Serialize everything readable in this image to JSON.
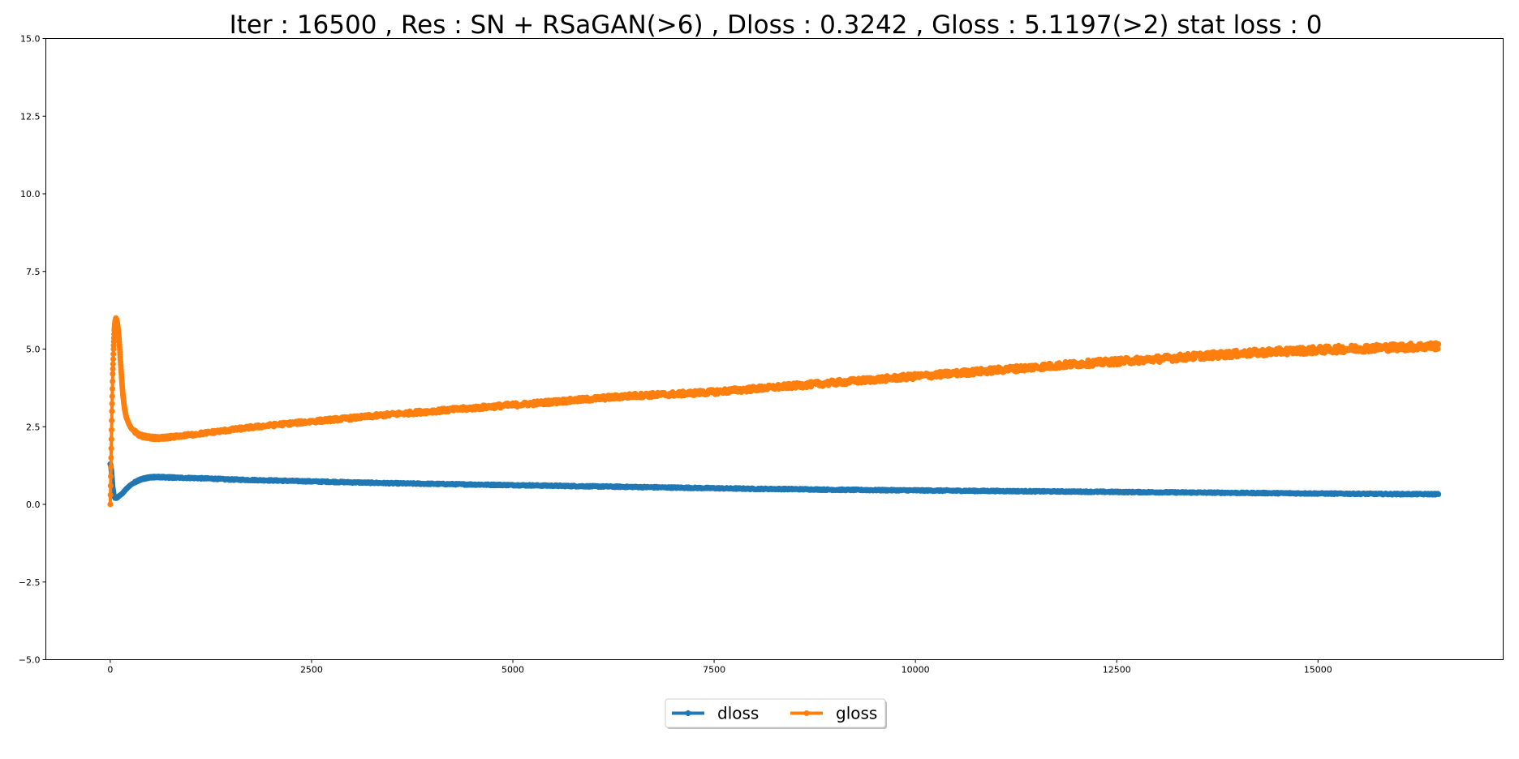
{
  "chart_data": {
    "type": "line",
    "title": "Iter : 16500 , Res : SN + RSaGAN(>6) , Dloss : 0.3242 , Gloss : 5.1197(>2) stat loss : 0",
    "xlabel": "",
    "ylabel": "",
    "xlim": [
      -800,
      17300
    ],
    "ylim": [
      -5.0,
      15.0
    ],
    "xticks": [
      0,
      2500,
      5000,
      7500,
      10000,
      12500,
      15000
    ],
    "xtick_labels": [
      "0",
      "2500",
      "5000",
      "7500",
      "10000",
      "12500",
      "15000"
    ],
    "yticks": [
      -5.0,
      -2.5,
      0.0,
      2.5,
      5.0,
      7.5,
      10.0,
      12.5,
      15.0
    ],
    "ytick_labels": [
      "−5.0",
      "−2.5",
      "0.0",
      "2.5",
      "5.0",
      "7.5",
      "10.0",
      "12.5",
      "15.0"
    ],
    "grid": false,
    "legend_position": "bottom-center",
    "series": [
      {
        "name": "dloss",
        "color": "#1f77b4",
        "x": [
          0,
          10,
          20,
          30,
          45,
          60,
          80,
          100,
          150,
          200,
          250,
          300,
          350,
          400,
          450,
          500,
          550,
          600,
          700,
          800,
          1000,
          1250,
          1500,
          2000,
          2500,
          3000,
          3500,
          4000,
          4500,
          5000,
          5500,
          6000,
          6500,
          7000,
          7500,
          8000,
          8500,
          9000,
          9500,
          10000,
          10500,
          11000,
          11500,
          12000,
          12500,
          13000,
          13500,
          14000,
          14500,
          15000,
          15500,
          16000,
          16500
        ],
        "y": [
          1.3,
          1.2,
          0.9,
          0.55,
          0.3,
          0.2,
          0.2,
          0.25,
          0.35,
          0.5,
          0.62,
          0.7,
          0.77,
          0.82,
          0.85,
          0.87,
          0.88,
          0.88,
          0.87,
          0.86,
          0.85,
          0.83,
          0.8,
          0.77,
          0.74,
          0.71,
          0.68,
          0.66,
          0.64,
          0.62,
          0.6,
          0.58,
          0.56,
          0.54,
          0.52,
          0.5,
          0.49,
          0.47,
          0.46,
          0.45,
          0.44,
          0.43,
          0.42,
          0.41,
          0.4,
          0.39,
          0.38,
          0.37,
          0.36,
          0.35,
          0.34,
          0.33,
          0.33
        ],
        "noise": 0.02
      },
      {
        "name": "gloss",
        "color": "#ff7f0e",
        "x": [
          0,
          10,
          20,
          30,
          40,
          50,
          60,
          70,
          80,
          90,
          100,
          110,
          120,
          130,
          140,
          150,
          160,
          180,
          200,
          230,
          260,
          300,
          350,
          400,
          450,
          500,
          550,
          600,
          650,
          700,
          800,
          900,
          1000,
          1250,
          1500,
          1750,
          2000,
          2500,
          3000,
          3500,
          4000,
          4500,
          5000,
          5500,
          6000,
          6500,
          7000,
          7500,
          8000,
          8500,
          9000,
          9500,
          10000,
          10500,
          11000,
          11500,
          12000,
          12500,
          13000,
          13500,
          14000,
          14500,
          15000,
          15500,
          16000,
          16500
        ],
        "y": [
          0.0,
          1.5,
          3.0,
          4.2,
          5.0,
          5.6,
          5.9,
          6.0,
          5.95,
          5.8,
          5.6,
          5.3,
          4.9,
          4.5,
          4.1,
          3.75,
          3.45,
          3.05,
          2.8,
          2.6,
          2.45,
          2.35,
          2.25,
          2.2,
          2.17,
          2.15,
          2.14,
          2.13,
          2.14,
          2.15,
          2.18,
          2.21,
          2.24,
          2.32,
          2.4,
          2.48,
          2.55,
          2.67,
          2.78,
          2.9,
          3.0,
          3.1,
          3.2,
          3.3,
          3.4,
          3.5,
          3.55,
          3.62,
          3.72,
          3.82,
          3.92,
          4.02,
          4.12,
          4.22,
          4.32,
          4.42,
          4.52,
          4.6,
          4.68,
          4.77,
          4.85,
          4.92,
          4.97,
          5.02,
          5.06,
          5.1
        ],
        "noise": 0.12
      }
    ]
  }
}
